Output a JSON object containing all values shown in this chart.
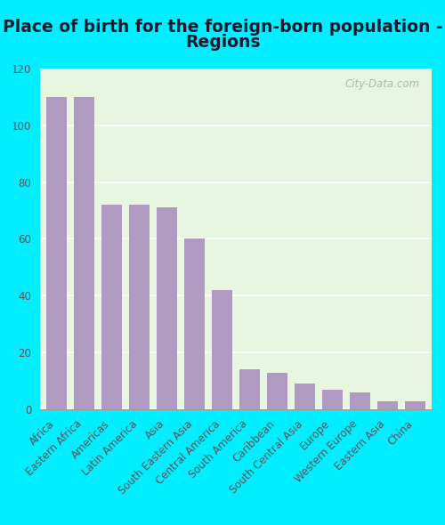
{
  "title_line1": "Place of birth for the foreign-born population -",
  "title_line2": "Regions",
  "categories": [
    "Africa",
    "Eastern Africa",
    "Americas",
    "Latin America",
    "Asia",
    "South Eastern Asia",
    "Central America",
    "South America",
    "Caribbean",
    "South Central Asia",
    "Europe",
    "Western Europe",
    "Eastern Asia",
    "China"
  ],
  "values": [
    110,
    110,
    72,
    72,
    71,
    60,
    42,
    14,
    13,
    9,
    7,
    6,
    3,
    3
  ],
  "bar_color": "#b09ac2",
  "plot_bg_color": "#e8f5e0",
  "outer_bg": "#00eeff",
  "title_color": "#1a1a2e",
  "ytick_color": "#555555",
  "xtick_color": "#555555",
  "grid_color": "#ffffff",
  "ylim": [
    0,
    120
  ],
  "yticks": [
    0,
    20,
    40,
    60,
    80,
    100,
    120
  ],
  "title_fontsize": 13.5,
  "tick_fontsize": 8.5,
  "watermark": "City-Data.com",
  "watermark_color": "#aaaaaa"
}
